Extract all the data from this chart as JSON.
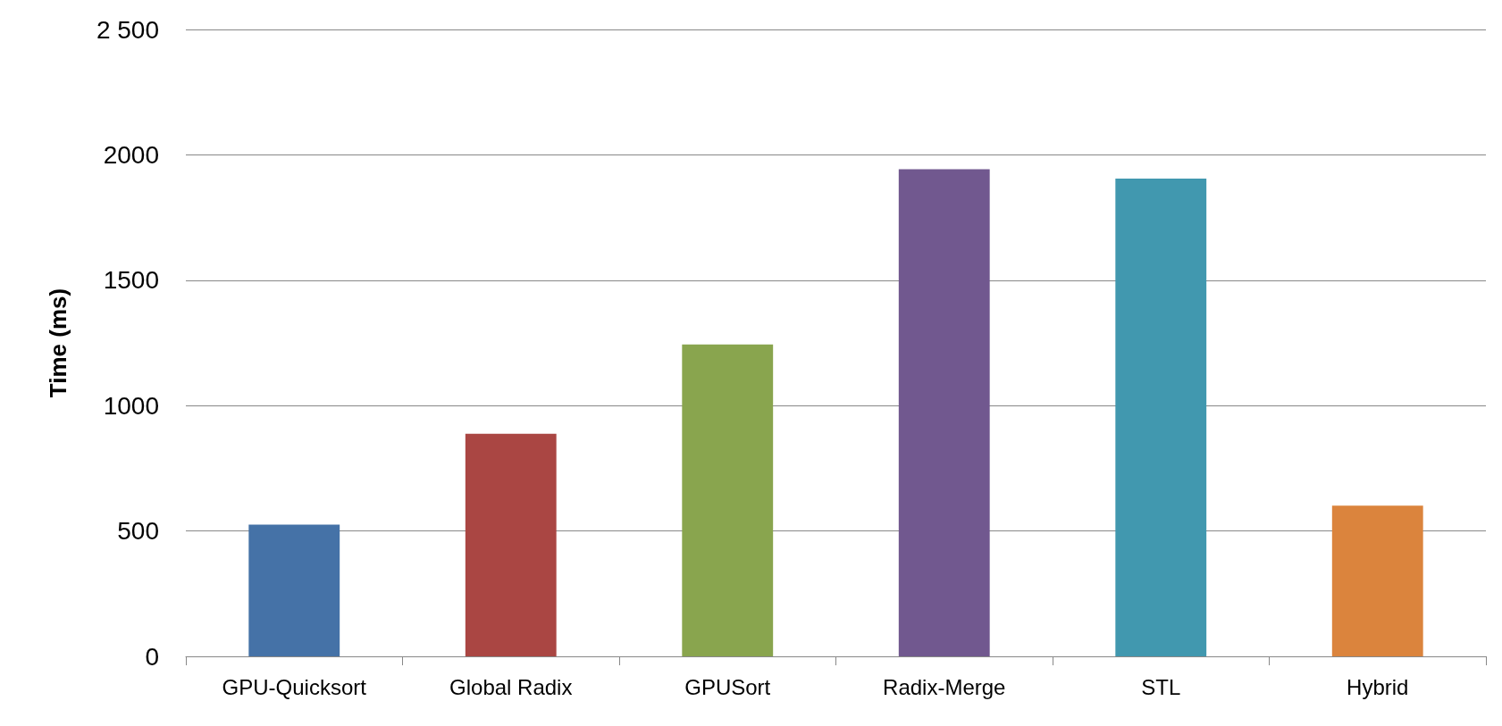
{
  "chart_data": {
    "type": "bar",
    "ylabel": "Time (ms)",
    "categories": [
      "GPU-Quicksort",
      "Global Radix",
      "GPUSort",
      "Radix-Merge",
      "STL",
      "Hybrid"
    ],
    "values": [
      525,
      888,
      1244,
      1943,
      1905,
      601
    ],
    "colors": [
      "#4572a7",
      "#aa4643",
      "#89a54e",
      "#71588f",
      "#4198af",
      "#db843d"
    ],
    "ylim": [
      0,
      2500
    ],
    "yticks": [
      0,
      500,
      1000,
      1500,
      2000,
      {
        "value": 2500,
        "label": "2 500"
      }
    ],
    "grid": "y"
  }
}
